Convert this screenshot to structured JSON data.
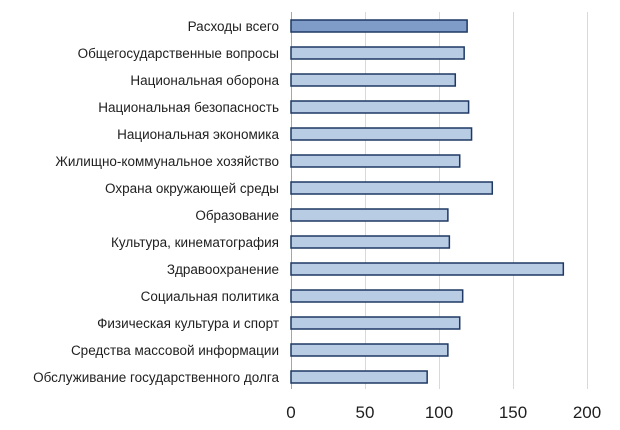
{
  "chart_data": {
    "type": "bar",
    "orientation": "horizontal",
    "categories": [
      "Расходы всего",
      "Общегосударственные вопросы",
      "Национальная оборона",
      "Национальная безопасность",
      "Национальная экономика",
      "Жилищно-коммунальное хозяйство",
      "Охрана окружающей среды",
      "Образование",
      "Культура, кинематография",
      "Здравоохранение",
      "Социальная политика",
      "Физическая культура и спорт",
      "Средства массовой информации",
      "Обслуживание государственного долга"
    ],
    "values": [
      119,
      117,
      111,
      120,
      122,
      114,
      136,
      106,
      107,
      184,
      116,
      114,
      106,
      92
    ],
    "xlim": [
      0,
      200
    ],
    "xticks": [
      0,
      50,
      100,
      150,
      200
    ],
    "grid": true,
    "legend": "none",
    "colors": {
      "highlight_fill": "#7f9cc9",
      "bar_fill": "#b8cce4",
      "bar_stroke": "#1f3864"
    }
  }
}
